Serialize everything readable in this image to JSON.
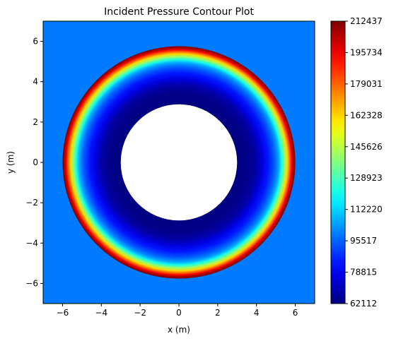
{
  "chart_data": {
    "type": "heatmap",
    "title": "Incident Pressure Contour Plot",
    "xlabel": "x (m)",
    "ylabel": "y (m)",
    "xlim": [
      -7,
      7
    ],
    "ylim": [
      -7,
      7
    ],
    "x_ticks": [
      -6,
      -4,
      -2,
      0,
      2,
      4,
      6
    ],
    "x_tick_labels": [
      "−6",
      "−4",
      "−2",
      "0",
      "2",
      "4",
      "6"
    ],
    "y_ticks": [
      -6,
      -4,
      -2,
      0,
      2,
      4,
      6
    ],
    "y_tick_labels": [
      "−6",
      "−4",
      "−2",
      "0",
      "2",
      "4",
      "6"
    ],
    "grid": false,
    "colormap": "jet",
    "background_value": 99000,
    "inner_radius": 3.0,
    "outer_radius": 6.0,
    "radial_profile": [
      {
        "r": 3.0,
        "value": 62112
      },
      {
        "r": 3.6,
        "value": 63500
      },
      {
        "r": 4.0,
        "value": 68000
      },
      {
        "r": 4.3,
        "value": 76000
      },
      {
        "r": 4.6,
        "value": 84000
      },
      {
        "r": 4.85,
        "value": 92000
      },
      {
        "r": 5.0,
        "value": 98000
      },
      {
        "r": 5.15,
        "value": 106000
      },
      {
        "r": 5.3,
        "value": 122000
      },
      {
        "r": 5.45,
        "value": 140000
      },
      {
        "r": 5.6,
        "value": 162000
      },
      {
        "r": 5.72,
        "value": 180000
      },
      {
        "r": 5.82,
        "value": 196000
      },
      {
        "r": 5.92,
        "value": 208000
      },
      {
        "r": 6.0,
        "value": 212437
      }
    ],
    "colorbar": {
      "min": 62112,
      "max": 212437,
      "ticks": [
        62112,
        78815,
        95517,
        112220,
        128923,
        145626,
        162328,
        179031,
        195734,
        212437
      ],
      "tick_labels": [
        "62112",
        "78815",
        "95517",
        "112220",
        "128923",
        "145626",
        "162328",
        "179031",
        "195734",
        "212437"
      ]
    }
  }
}
